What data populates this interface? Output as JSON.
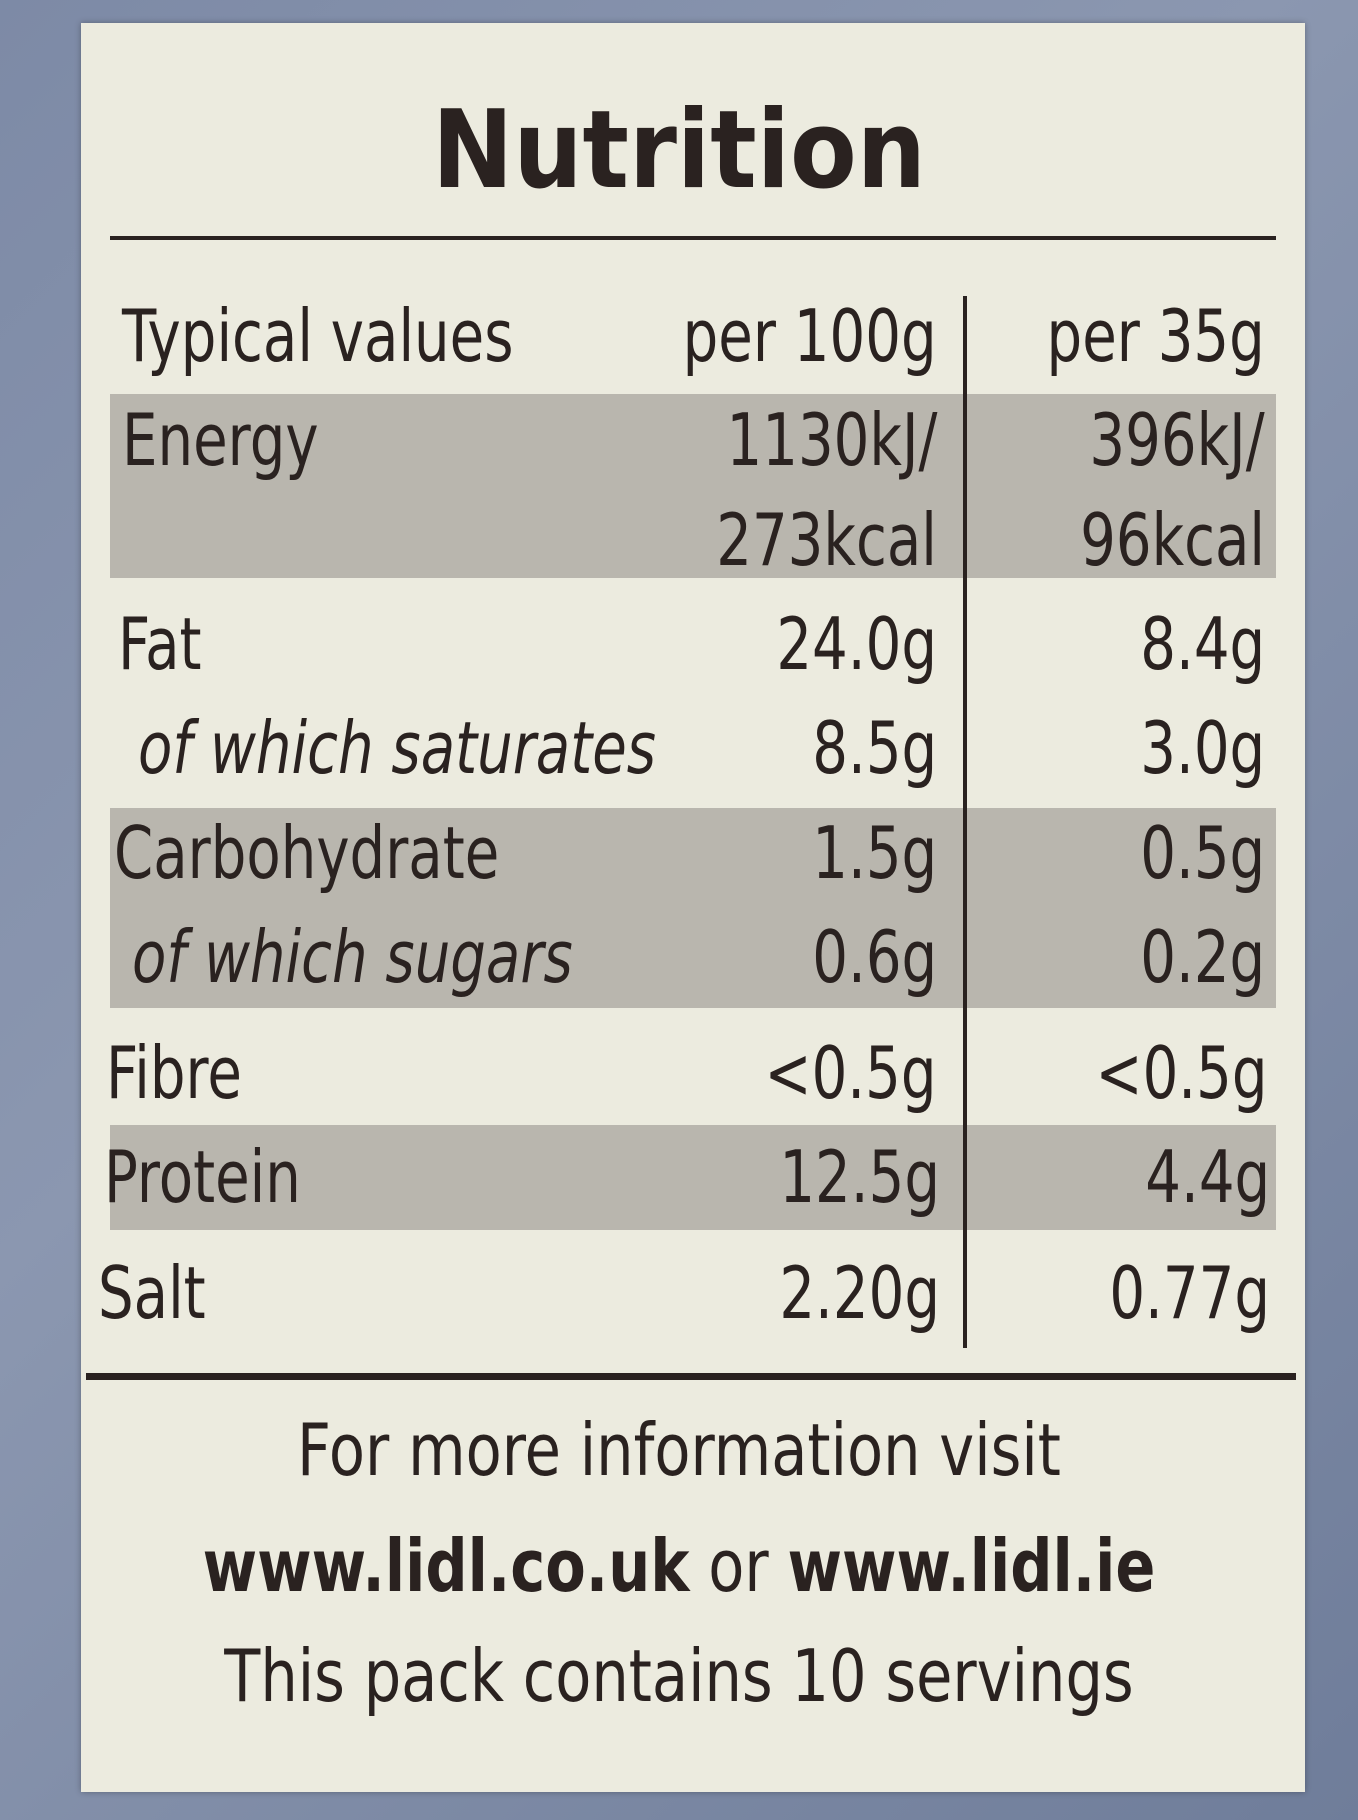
{
  "title": "Nutrition",
  "table": {
    "header": [
      "Typical values",
      "per 100g",
      "per 35g"
    ],
    "rows": [
      [
        "Energy",
        [
          "1130kJ/",
          "273kcal"
        ],
        [
          "396kJ/",
          "96kcal"
        ]
      ],
      [
        "Fat",
        "24.0g",
        "8.4g"
      ],
      [
        "of which saturates",
        "8.5g",
        "3.0g"
      ],
      [
        "Carbohydrate",
        "1.5g",
        "0.5g"
      ],
      [
        "of which sugars",
        "0.6g",
        "0.2g"
      ],
      [
        "Fibre",
        "<0.5g",
        "<0.5g"
      ],
      [
        "Protein",
        "12.5g",
        "4.4g"
      ],
      [
        "Salt",
        "2.20g",
        "0.77g"
      ]
    ]
  },
  "footer": {
    "line1": "For more information visit",
    "link1": "www.lidl.co.uk",
    "joiner": "or",
    "link2": "www.lidl.ie",
    "line3": "This pack contains 10 servings"
  }
}
